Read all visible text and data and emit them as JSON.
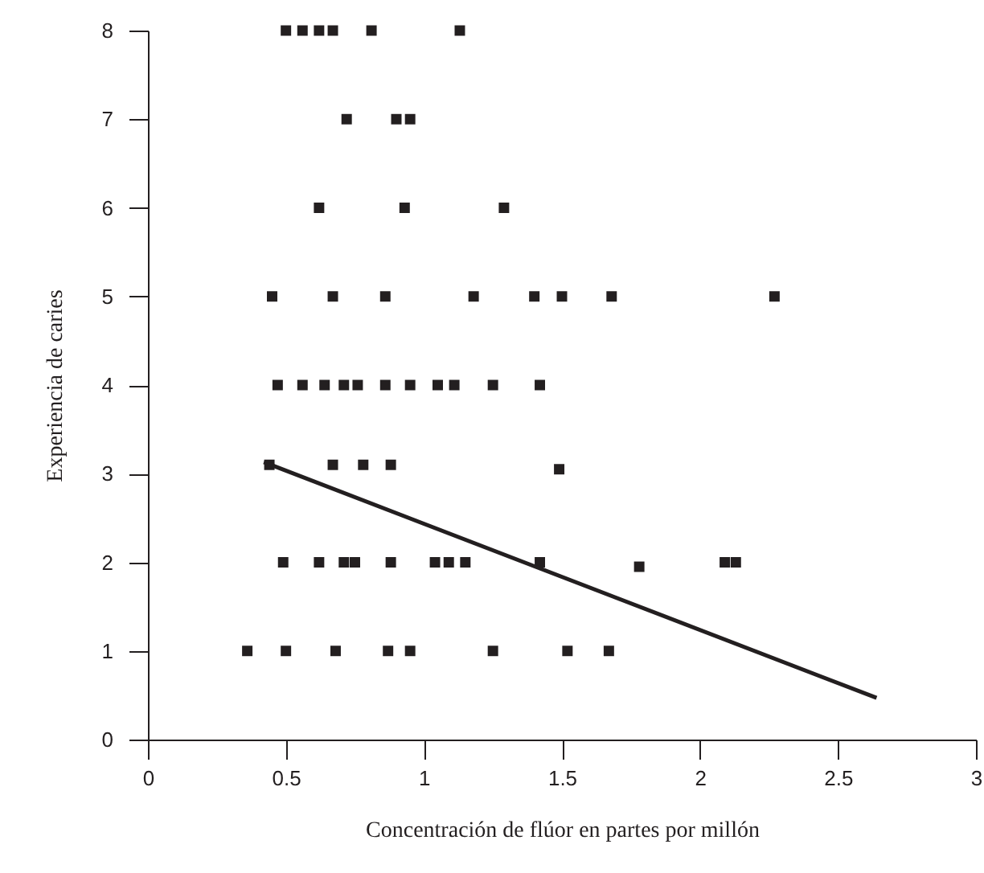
{
  "chart_data": {
    "type": "scatter",
    "xlabel": "Concentración de flúor en partes por millón",
    "ylabel": "Experiencia de caries",
    "xlim": [
      0,
      3
    ],
    "ylim": [
      0,
      8
    ],
    "xticks": [
      0,
      0.5,
      1,
      1.5,
      2,
      2.5,
      3
    ],
    "yticks": [
      0,
      1,
      2,
      3,
      4,
      5,
      6,
      7,
      8
    ],
    "grid": false,
    "series": [
      {
        "marker": "square",
        "color": "#231f20",
        "x": [
          0.5,
          0.56,
          0.62,
          0.67,
          0.81,
          1.13,
          0.72,
          0.9,
          0.95,
          0.62,
          0.93,
          1.29,
          0.45,
          0.67,
          0.86,
          1.18,
          1.4,
          1.5,
          1.68,
          2.27,
          0.47,
          0.56,
          0.64,
          0.71,
          0.76,
          0.86,
          0.95,
          1.05,
          1.11,
          1.25,
          1.42,
          0.44,
          0.67,
          0.78,
          0.88,
          1.49,
          0.49,
          0.62,
          0.71,
          0.75,
          0.88,
          1.04,
          1.09,
          1.15,
          1.42,
          1.78,
          2.09,
          2.13,
          0.36,
          0.5,
          0.68,
          0.87,
          0.95,
          1.25,
          1.52,
          1.67
        ],
        "values": [
          8,
          8,
          8,
          8,
          8,
          8,
          7,
          7,
          7,
          6,
          6,
          6,
          5,
          5,
          5,
          5,
          5,
          5,
          5,
          5,
          4,
          4,
          4,
          4,
          4,
          4,
          4,
          4,
          4,
          4,
          4,
          3.1,
          3.1,
          3.1,
          3.1,
          3.05,
          2,
          2,
          2,
          2,
          2,
          2,
          2,
          2,
          2,
          1.95,
          2,
          2,
          1,
          1,
          1,
          1,
          1,
          1,
          1,
          1
        ]
      },
      {
        "type": "line",
        "color": "#231f20",
        "x": [
          0.42,
          2.64
        ],
        "values": [
          3.13,
          0.47
        ]
      }
    ]
  }
}
